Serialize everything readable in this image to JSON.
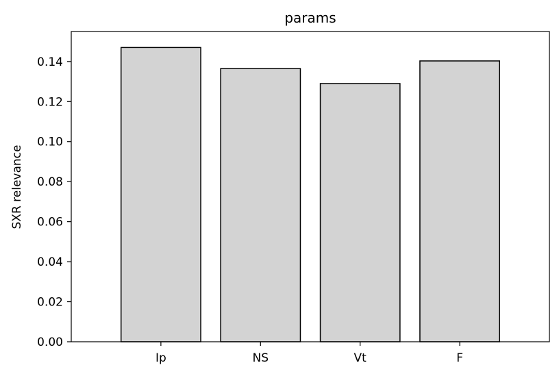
{
  "chart_data": {
    "type": "bar",
    "title": "params",
    "xlabel": "",
    "ylabel": "SXR relevance",
    "categories": [
      "Ip",
      "NS",
      "Vt",
      "F"
    ],
    "values": [
      0.147,
      0.1365,
      0.129,
      0.1403
    ],
    "ylim": [
      0,
      0.155
    ],
    "yticks": [
      0.0,
      0.02,
      0.04,
      0.06,
      0.08,
      0.1,
      0.12,
      0.14
    ],
    "ytick_labels": [
      "0.00",
      "0.02",
      "0.04",
      "0.06",
      "0.08",
      "0.10",
      "0.12",
      "0.14"
    ],
    "grid": false,
    "bar_color": "#d3d3d3",
    "edge_color": "#000000"
  }
}
